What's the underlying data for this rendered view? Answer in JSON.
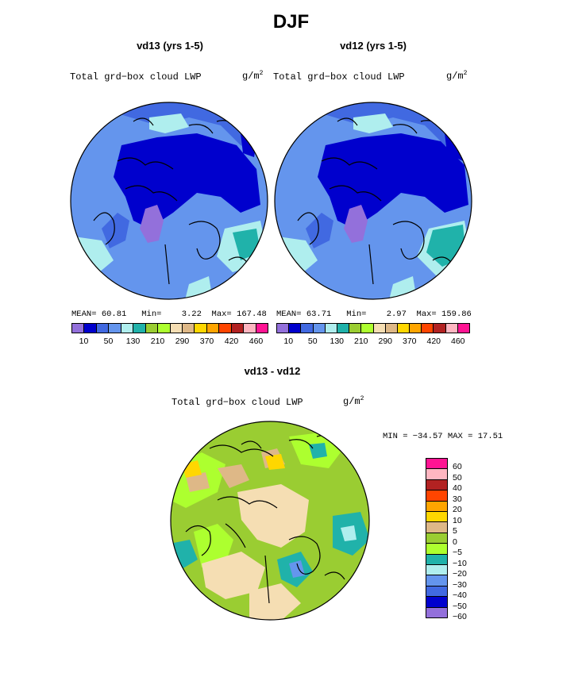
{
  "main_title": "DJF",
  "panels": [
    {
      "title": "vd13 (yrs 1-5)",
      "variable": "Total grd−box cloud LWP",
      "unit_base": "g/m",
      "unit_sup": "2",
      "stats": {
        "mean_label": "MEAN=",
        "mean": "60.81",
        "min_label": "Min=",
        "min": "3.22",
        "max_label": "Max=",
        "max": "167.48"
      }
    },
    {
      "title": "vd12 (yrs 1-5)",
      "variable": "Total grd−box cloud LWP",
      "unit_base": "g/m",
      "unit_sup": "2",
      "stats": {
        "mean_label": "MEAN=",
        "mean": "63.71",
        "min_label": "Min=",
        "min": "2.97",
        "max_label": "Max=",
        "max": "159.86"
      }
    }
  ],
  "colorbar": {
    "colors": [
      "#9370DB",
      "#0000CD",
      "#4169E1",
      "#6495ED",
      "#AFEEEE",
      "#20B2AA",
      "#9ACD32",
      "#ADFF2F",
      "#F5DEB3",
      "#DEB887",
      "#FFD700",
      "#FFA500",
      "#FF4500",
      "#B22222",
      "#FFB6C1",
      "#FF1493"
    ],
    "tick_labels": [
      "10",
      "50",
      "130",
      "210",
      "290",
      "370",
      "420",
      "460"
    ]
  },
  "diff_panel": {
    "title": "vd13 - vd12",
    "variable": "Total grd−box cloud LWP",
    "unit_base": "g/m",
    "unit_sup": "2",
    "minmax": "MIN = −34.57 MAX =   17.51",
    "colorbar": {
      "colors": [
        "#FF1493",
        "#FFB6C1",
        "#B22222",
        "#FF4500",
        "#FFA500",
        "#FFD700",
        "#DEB887",
        "#9ACD32",
        "#ADFF2F",
        "#20B2AA",
        "#AFEEEE",
        "#6495ED",
        "#4169E1",
        "#0000CD",
        "#9370DB"
      ],
      "labels": [
        "60",
        "50",
        "40",
        "30",
        "20",
        "10",
        "5",
        "0",
        "−5",
        "−10",
        "−20",
        "−30",
        "−40",
        "−50",
        "−60"
      ]
    }
  }
}
